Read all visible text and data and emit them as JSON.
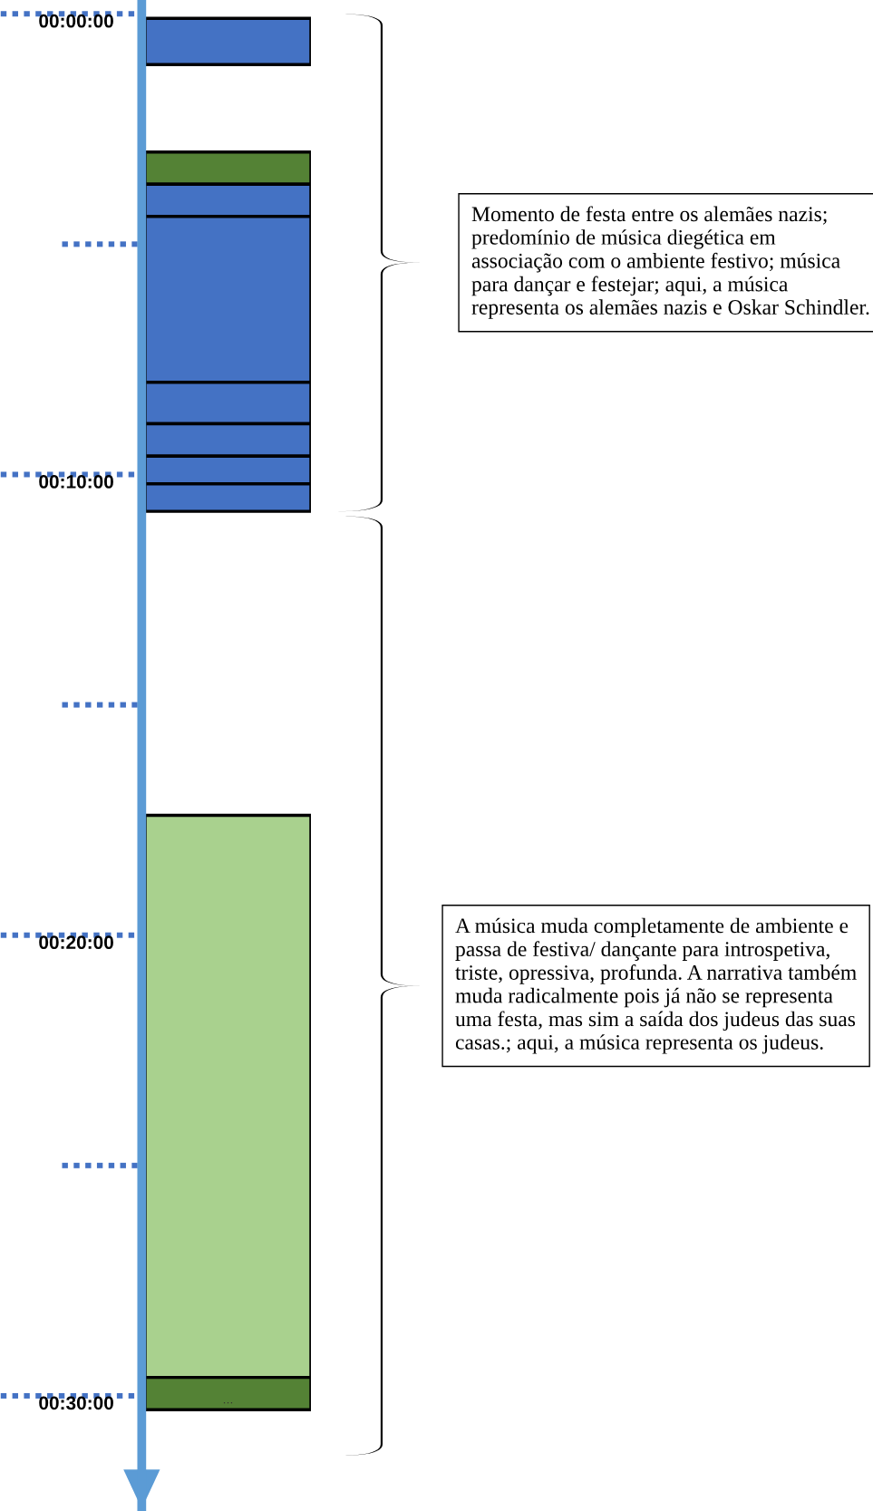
{
  "chart_data": {
    "type": "bar",
    "categories": [
      null
    ],
    "series": [
      {
        "color": "#4472c4",
        "base": [
          0.1
        ],
        "values": [
          1.0
        ]
      },
      {
        "color": "#548235",
        "base": [
          3.0
        ],
        "values": [
          0.7
        ]
      },
      {
        "color": "#4472c4",
        "base": [
          3.7
        ],
        "values": [
          0.7
        ]
      },
      {
        "color": "#4472c4",
        "base": [
          4.4
        ],
        "values": [
          3.6
        ]
      },
      {
        "color": "#4472c4",
        "base": [
          8.0
        ],
        "values": [
          0.9
        ]
      },
      {
        "color": "#4472c4",
        "base": [
          8.9
        ],
        "values": [
          0.7
        ]
      },
      {
        "color": "#4472c4",
        "base": [
          9.6
        ],
        "values": [
          0.6
        ]
      },
      {
        "color": "#4472c4",
        "base": [
          10.2
        ],
        "values": [
          0.6
        ]
      },
      {
        "color": "#a9d18e",
        "base": [
          17.4
        ],
        "values": [
          12.2
        ]
      },
      {
        "color": "#548235",
        "base": [
          29.6
        ],
        "values": [
          0.7
        ]
      }
    ],
    "ylim": [
      32.5,
      -0.3
    ],
    "yticks": [
      {
        "value": 0,
        "label": "00:00:00"
      },
      {
        "value": 10,
        "label": "00:10:00"
      },
      {
        "value": 20,
        "label": "00:20:00"
      },
      {
        "value": 30,
        "label": "00:30:00"
      }
    ],
    "annotations": [
      "Momento de festa entre os alemães nazis; predomínio de música diegética em associação com o ambiente festivo; música para dançar e festejar; aqui, a música representa os alemães nazis e Oskar Schindler.",
      "A música muda completamente de ambiente e passa de festiva/ dançante para introspetiva, triste, opressiva, profunda. A narrativa também muda radicalmente pois já não se representa uma festa, mas sim a saída dos judeus das suas casas.; aqui, a música representa os judeus.",
      "…"
    ],
    "grid": false,
    "legend": false
  }
}
